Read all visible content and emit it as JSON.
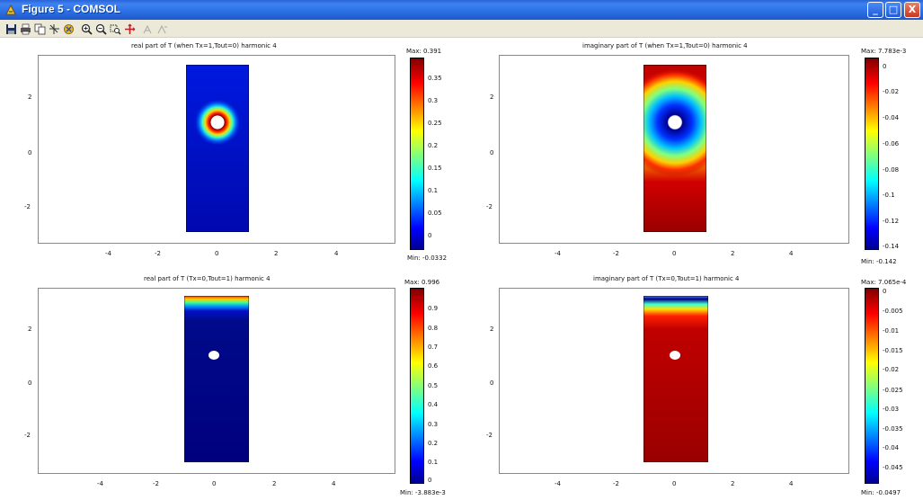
{
  "window": {
    "title": "Figure 5 - COMSOL",
    "minimize_label": "_",
    "maximize_label": "□",
    "close_label": "X"
  },
  "toolbar": {
    "icons": [
      "save-icon",
      "print-icon",
      "copy-icon",
      "axis-icon",
      "pan-icon",
      "zoom-in-icon",
      "zoom-out-icon",
      "zoom-box-icon",
      "zoom-extents-icon",
      "undo-view-icon",
      "redo-view-icon"
    ]
  },
  "chart_data": [
    {
      "type": "heatmap",
      "title": "real part of T (when Tx=1,Tout=0) harmonic 4",
      "xticks": [
        "-4",
        "-2",
        "0",
        "2",
        "4"
      ],
      "yticks": [
        "2",
        "0",
        "-2"
      ],
      "colorbar": {
        "max_label": "Max: 0.391",
        "min_label": "Min: -0.0332",
        "ticks": [
          "0.35",
          "0.3",
          "0.25",
          "0.2",
          "0.15",
          "0.1",
          "0.05",
          "0"
        ],
        "max": 0.391,
        "min": -0.0332
      }
    },
    {
      "type": "heatmap",
      "title": "imaginary part of T (when Tx=1,Tout=0) harmonic 4",
      "xticks": [
        "-4",
        "-2",
        "0",
        "2",
        "4"
      ],
      "yticks": [
        "2",
        "0",
        "-2"
      ],
      "colorbar": {
        "max_label": "Max: 7.783e-3",
        "min_label": "Min: -0.142",
        "ticks": [
          "0",
          "-0.02",
          "-0.04",
          "-0.06",
          "-0.08",
          "-0.1",
          "-0.12",
          "-0.14"
        ],
        "max": 0.007783,
        "min": -0.142
      }
    },
    {
      "type": "heatmap",
      "title": "real part of T (Tx=0,Tout=1) harmonic 4",
      "xticks": [
        "-4",
        "-2",
        "0",
        "2",
        "4"
      ],
      "yticks": [
        "2",
        "0",
        "-2"
      ],
      "colorbar": {
        "max_label": "Max: 0.996",
        "min_label": "Min: -3.883e-3",
        "ticks": [
          "0.9",
          "0.8",
          "0.7",
          "0.6",
          "0.5",
          "0.4",
          "0.3",
          "0.2",
          "0.1",
          "0"
        ],
        "max": 0.996,
        "min": -0.003883
      }
    },
    {
      "type": "heatmap",
      "title": "imaginary part of T (Tx=0,Tout=1) harmonic 4",
      "xticks": [
        "-4",
        "-2",
        "0",
        "2",
        "4"
      ],
      "yticks": [
        "2",
        "0",
        "-2"
      ],
      "colorbar": {
        "max_label": "Max: 7.065e-4",
        "min_label": "Min: -0.0497",
        "ticks": [
          "0",
          "-0.005",
          "-0.01",
          "-0.015",
          "-0.02",
          "-0.025",
          "-0.03",
          "-0.035",
          "-0.04",
          "-0.045"
        ],
        "max": 0.0007065,
        "min": -0.0497
      }
    }
  ]
}
